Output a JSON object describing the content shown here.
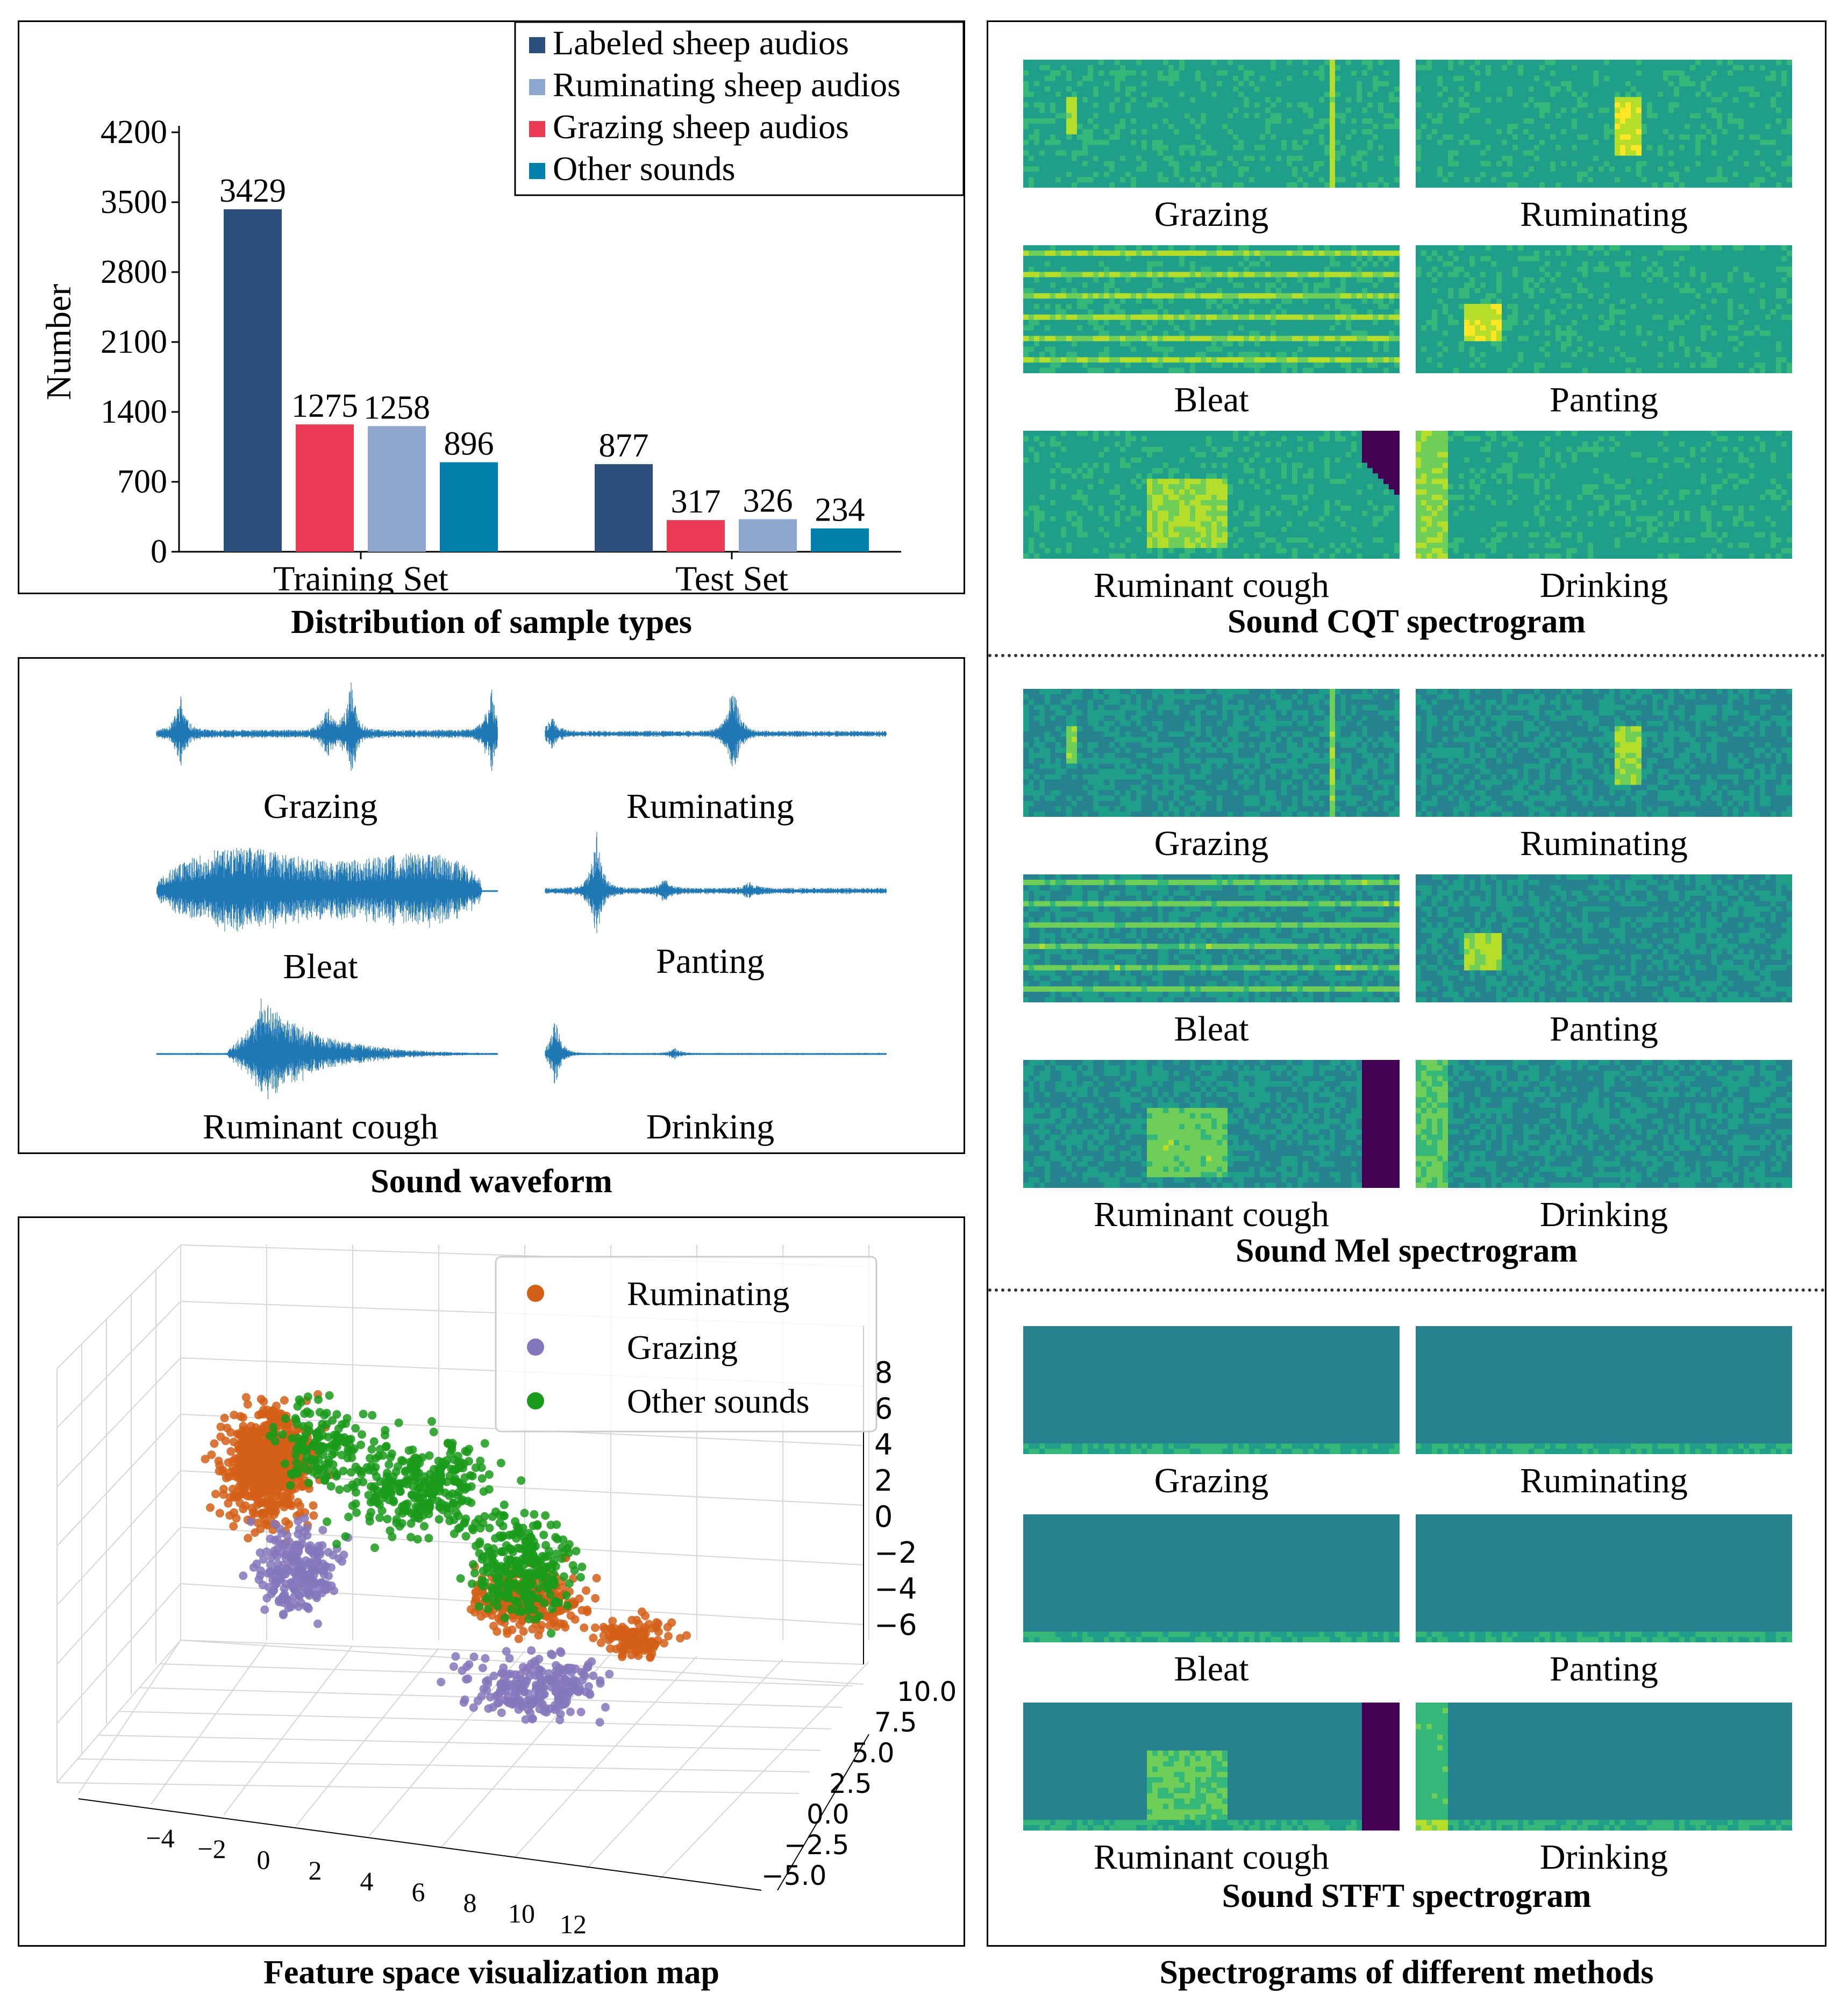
{
  "chart_data": [
    {
      "type": "bar",
      "title": "Distribution of sample types",
      "ylabel": "Number",
      "ylim": [
        0,
        4200
      ],
      "yticks": [
        "0",
        "700",
        "1400",
        "2100",
        "2800",
        "3500",
        "4200"
      ],
      "categories": [
        "Training Set",
        "Test Set"
      ],
      "series": [
        {
          "name": "Labeled sheep audios",
          "color": "#2b4f7a",
          "values": [
            3429,
            877
          ]
        },
        {
          "name": "Grazing sheep audios",
          "color": "#ea3a55",
          "values": [
            1275,
            317
          ]
        },
        {
          "name": "Ruminating sheep audios",
          "color": "#8ea7cf",
          "values": [
            1258,
            326
          ]
        },
        {
          "name": "Other sounds",
          "color": "#0080aa",
          "values": [
            896,
            234
          ]
        }
      ],
      "value_labels": [
        "3429",
        "1275",
        "1258",
        "896",
        "877",
        "317",
        "326",
        "234"
      ],
      "legend": [
        "Labeled sheep audios",
        "Ruminating sheep audios",
        "Grazing sheep audios",
        "Other sounds"
      ],
      "legend_position": "top-right"
    },
    {
      "type": "scatter",
      "title": "Feature space visualization map",
      "dimensions": 3,
      "series": [
        {
          "name": "Ruminating",
          "color": "#d35f18"
        },
        {
          "name": "Grazing",
          "color": "#8577bb"
        },
        {
          "name": "Other sounds",
          "color": "#1a9a1a"
        }
      ],
      "x_ticks": [
        "−4",
        "−2",
        "0",
        "2",
        "4",
        "6",
        "8",
        "10",
        "12"
      ],
      "y_ticks": [
        "−5.0",
        "−2.5",
        "0.0",
        "2.5",
        "5.0",
        "7.5",
        "10.0"
      ],
      "z_ticks": [
        "−6",
        "−4",
        "−2",
        "0",
        "2",
        "4",
        "6",
        "8"
      ],
      "legend_position": "top-right"
    }
  ],
  "waveform": {
    "caption": "Sound waveform",
    "labels": [
      "Grazing",
      "Ruminating",
      "Bleat",
      "Panting",
      "Ruminant cough",
      "Drinking"
    ],
    "color": "#1f77b4"
  },
  "spectrograms": {
    "caption": "Spectrograms of different methods",
    "groups": [
      {
        "title": "Sound CQT spectrogram",
        "labels": [
          "Grazing",
          "Ruminating",
          "Bleat",
          "Panting",
          "Ruminant cough",
          "Drinking"
        ]
      },
      {
        "title": "Sound Mel spectrogram",
        "labels": [
          "Grazing",
          "Ruminating",
          "Bleat",
          "Panting",
          "Ruminant cough",
          "Drinking"
        ]
      },
      {
        "title": "Sound STFT spectrogram",
        "labels": [
          "Grazing",
          "Ruminating",
          "Bleat",
          "Panting",
          "Ruminant cough",
          "Drinking"
        ]
      }
    ]
  },
  "colors": {
    "viridis_low": "#3b528b",
    "viridis_mid": "#21918c",
    "viridis_high": "#fde725",
    "viridis_min": "#440154"
  }
}
